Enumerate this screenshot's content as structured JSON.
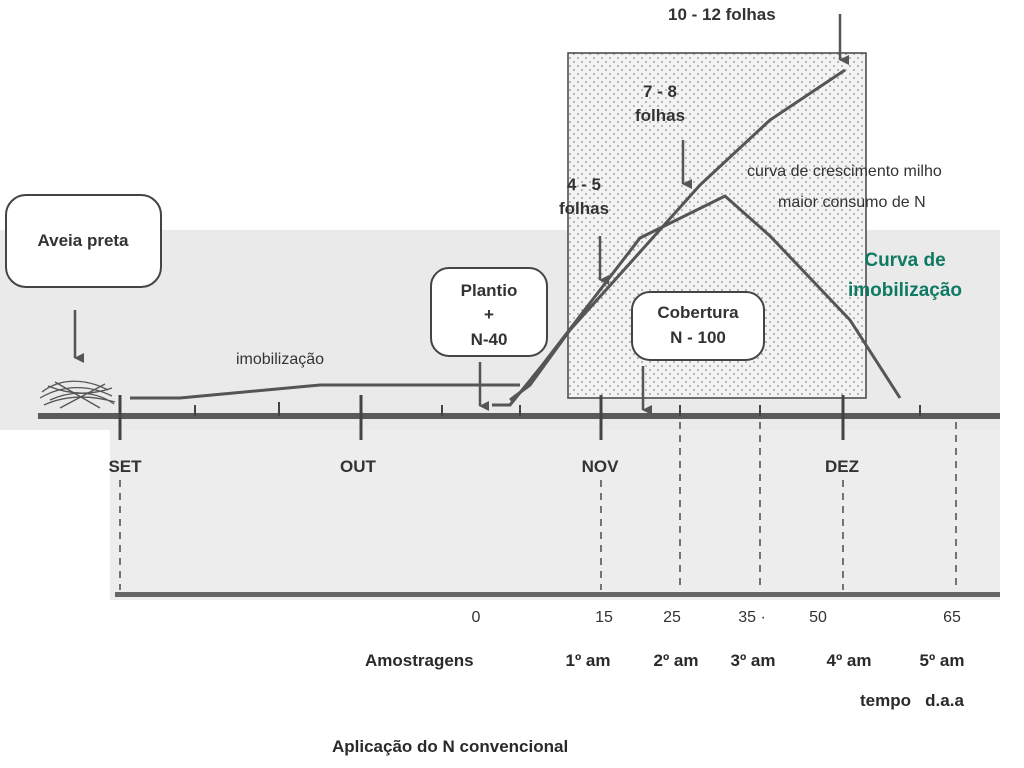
{
  "title": "Aplicação do N convencional",
  "boxes": {
    "aveia": "Aveia preta",
    "plantio": [
      "Plantio",
      "+",
      "N-40"
    ],
    "cobertura": [
      "Cobertura",
      "N - 100"
    ]
  },
  "leaf_stages": {
    "stage_10_12": "10 - 12   folhas",
    "stage_7_8": [
      "7 - 8",
      "folhas"
    ],
    "stage_4_5": [
      "4 - 5",
      "folhas"
    ]
  },
  "curve_labels": {
    "growth": "curva de crescimento milho",
    "max_n": "maior consumo de N",
    "immobilization_text": "imobilização",
    "immobilization_curve": [
      "Curva de",
      "imobilização"
    ]
  },
  "months": [
    "SET",
    "OUT",
    "NOV",
    "DEZ"
  ],
  "days": [
    "0",
    "15",
    "25",
    "35 ·",
    "50",
    "65"
  ],
  "sampling": {
    "label": "Amostragens",
    "items": [
      "1º am",
      "2º am",
      "3º am",
      "4º am",
      "5º am"
    ]
  },
  "time_label": "tempo   d.a.a",
  "colors": {
    "line": "#555555",
    "accent_text": "#0e7a63",
    "dotted_region": "#f1f1f1",
    "band": "#e9e9e9"
  }
}
